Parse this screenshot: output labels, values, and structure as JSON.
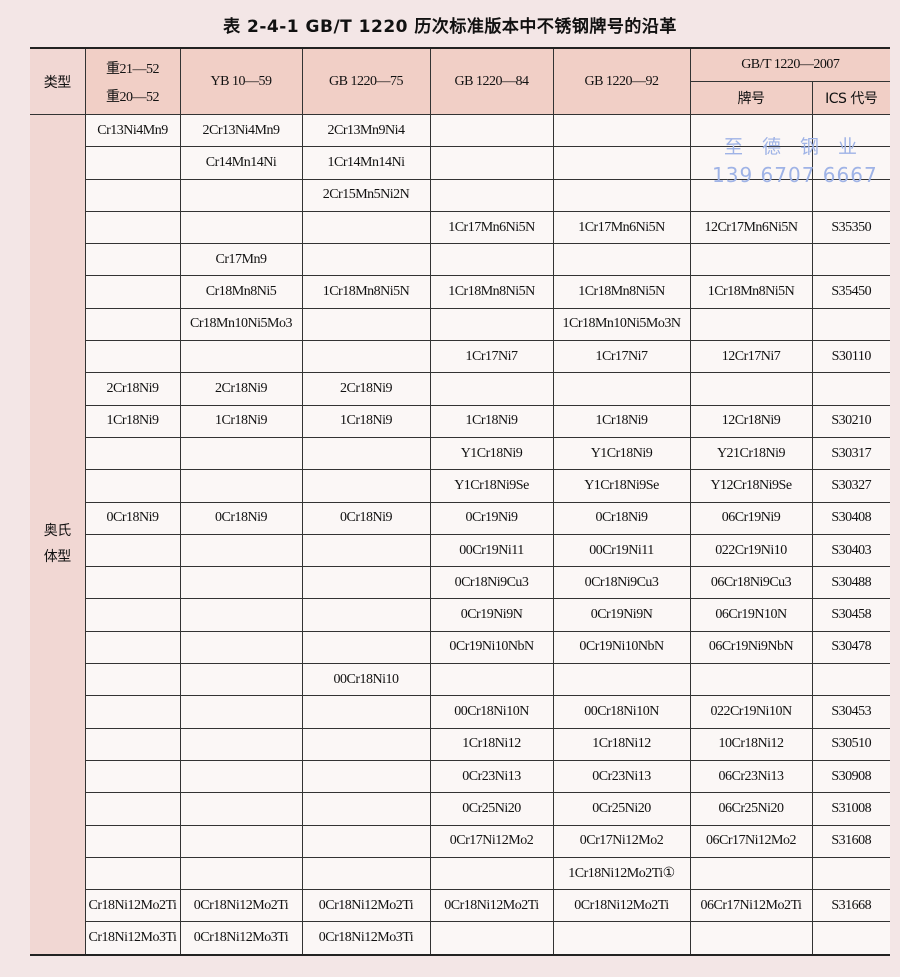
{
  "title": "表 2-4-1   GB/T 1220 历次标准版本中不锈钢牌号的沿革",
  "header": {
    "type": "类型",
    "col1_line1": "重21—52",
    "col1_line2": "重20—52",
    "col2": "YB 10—59",
    "col3": "GB 1220—75",
    "col4": "GB 1220—84",
    "col5": "GB 1220—92",
    "col6_group": "GB/T 1220—2007",
    "col6": "牌号",
    "col7": "ICS 代号"
  },
  "type_label_line1": "奥氏",
  "type_label_line2": "体型",
  "rows": [
    [
      "Cr13Ni4Mn9",
      "2Cr13Ni4Mn9",
      "2Cr13Mn9Ni4",
      "",
      "",
      "",
      ""
    ],
    [
      "",
      "Cr14Mn14Ni",
      "1Cr14Mn14Ni",
      "",
      "",
      "",
      ""
    ],
    [
      "",
      "",
      "2Cr15Mn5Ni2N",
      "",
      "",
      "",
      ""
    ],
    [
      "",
      "",
      "",
      "1Cr17Mn6Ni5N",
      "1Cr17Mn6Ni5N",
      "12Cr17Mn6Ni5N",
      "S35350"
    ],
    [
      "",
      "Cr17Mn9",
      "",
      "",
      "",
      "",
      ""
    ],
    [
      "",
      "Cr18Mn8Ni5",
      "1Cr18Mn8Ni5N",
      "1Cr18Mn8Ni5N",
      "1Cr18Mn8Ni5N",
      "1Cr18Mn8Ni5N",
      "S35450"
    ],
    [
      "",
      "Cr18Mn10Ni5Mo3",
      "",
      "",
      "1Cr18Mn10Ni5Mo3N",
      "",
      ""
    ],
    [
      "",
      "",
      "",
      "1Cr17Ni7",
      "1Cr17Ni7",
      "12Cr17Ni7",
      "S30110"
    ],
    [
      "2Cr18Ni9",
      "2Cr18Ni9",
      "2Cr18Ni9",
      "",
      "",
      "",
      ""
    ],
    [
      "1Cr18Ni9",
      "1Cr18Ni9",
      "1Cr18Ni9",
      "1Cr18Ni9",
      "1Cr18Ni9",
      "12Cr18Ni9",
      "S30210"
    ],
    [
      "",
      "",
      "",
      "Y1Cr18Ni9",
      "Y1Cr18Ni9",
      "Y21Cr18Ni9",
      "S30317"
    ],
    [
      "",
      "",
      "",
      "Y1Cr18Ni9Se",
      "Y1Cr18Ni9Se",
      "Y12Cr18Ni9Se",
      "S30327"
    ],
    [
      "0Cr18Ni9",
      "0Cr18Ni9",
      "0Cr18Ni9",
      "0Cr19Ni9",
      "0Cr18Ni9",
      "06Cr19Ni9",
      "S30408"
    ],
    [
      "",
      "",
      "",
      "00Cr19Ni11",
      "00Cr19Ni11",
      "022Cr19Ni10",
      "S30403"
    ],
    [
      "",
      "",
      "",
      "0Cr18Ni9Cu3",
      "0Cr18Ni9Cu3",
      "06Cr18Ni9Cu3",
      "S30488"
    ],
    [
      "",
      "",
      "",
      "0Cr19Ni9N",
      "0Cr19Ni9N",
      "06Cr19N10N",
      "S30458"
    ],
    [
      "",
      "",
      "",
      "0Cr19Ni10NbN",
      "0Cr19Ni10NbN",
      "06Cr19Ni9NbN",
      "S30478"
    ],
    [
      "",
      "",
      "00Cr18Ni10",
      "",
      "",
      "",
      ""
    ],
    [
      "",
      "",
      "",
      "00Cr18Ni10N",
      "00Cr18Ni10N",
      "022Cr19Ni10N",
      "S30453"
    ],
    [
      "",
      "",
      "",
      "1Cr18Ni12",
      "1Cr18Ni12",
      "10Cr18Ni12",
      "S30510"
    ],
    [
      "",
      "",
      "",
      "0Cr23Ni13",
      "0Cr23Ni13",
      "06Cr23Ni13",
      "S30908"
    ],
    [
      "",
      "",
      "",
      "0Cr25Ni20",
      "0Cr25Ni20",
      "06Cr25Ni20",
      "S31008"
    ],
    [
      "",
      "",
      "",
      "0Cr17Ni12Mo2",
      "0Cr17Ni12Mo2",
      "06Cr17Ni12Mo2",
      "S31608"
    ],
    [
      "",
      "",
      "",
      "",
      "1Cr18Ni12Mo2Ti①",
      "",
      ""
    ],
    [
      "Cr18Ni12Mo2Ti",
      "0Cr18Ni12Mo2Ti",
      "0Cr18Ni12Mo2Ti",
      "0Cr18Ni12Mo2Ti",
      "0Cr18Ni12Mo2Ti",
      "06Cr17Ni12Mo2Ti",
      "S31668"
    ],
    [
      "Cr18Ni12Mo3Ti",
      "0Cr18Ni12Mo3Ti",
      "0Cr18Ni12Mo3Ti",
      "",
      "",
      "",
      ""
    ]
  ],
  "watermark": {
    "line1": "至德钢业",
    "line2": "139 6707 6667",
    "color": "#9fb3e6"
  },
  "colors": {
    "header_bg": "#f1cfc6",
    "page_bg": "#f3e6e6"
  }
}
